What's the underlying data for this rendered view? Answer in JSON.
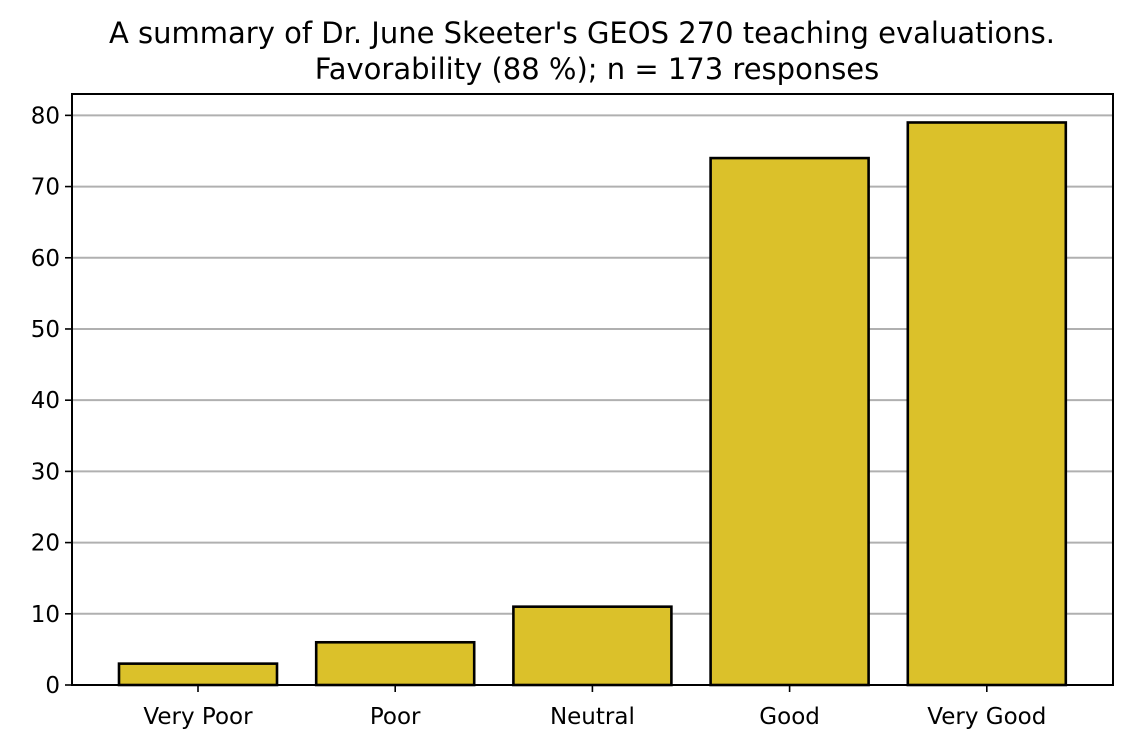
{
  "chart_data": {
    "type": "bar",
    "title": "A summary of Dr. June Skeeter's GEOS 270 teaching evaluations.",
    "subtitle": "Favorability (88 %); n = 173 responses",
    "categories": [
      "Very Poor",
      "Poor",
      "Neutral",
      "Good",
      "Very Good"
    ],
    "values": [
      3,
      6,
      11,
      74,
      79
    ],
    "xlabel": "",
    "ylabel": "",
    "ylim": [
      0,
      83
    ],
    "yticks": [
      0,
      10,
      20,
      30,
      40,
      50,
      60,
      70,
      80
    ],
    "grid": "horizontal",
    "bar_color": "#dbc12a",
    "edge_color": "#000000"
  }
}
